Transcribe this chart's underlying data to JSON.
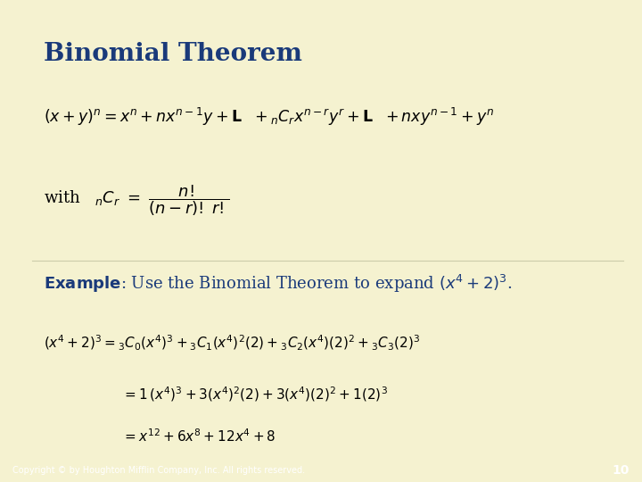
{
  "background_color": "#f5f2d0",
  "border_color": "#1a3a7a",
  "title": "Binomial Theorem",
  "title_color": "#1a3a7a",
  "title_fontsize": 20,
  "text_color": "#1a3a7a",
  "footer_text": "Copyright © by Houghton Mifflin Company, Inc. All rights reserved.",
  "footer_page": "10",
  "line1": "$(x + y)^n = x^n + nx^{n-1}y + \\mathbf{L}\\ \\ +_{n}C_{r}x^{n-r}y^r + \\mathbf{L}\\ \\ + nxy^{n-1} + y^n$",
  "line2": "with   $_{n}C_{r}\\ =\\ \\dfrac{n!}{(n-r)!\\;r!}$",
  "example_line": "$\\mathbf{Example}$: Use the Binomial Theorem to expand $(x^4 + 2)^3$.",
  "eq1": "$(x^4 + 2)^3 = {}_{3}C_0(x^4)^3 + {}_{3}C_1(x^4)^2(2) + {}_{3}C_2(x^4)(2)^2 + {}_{3}C_3(2)^3$",
  "eq2": "$= 1\\,(x^4)^3 + 3(x^4)^2(2) + 3(x^4)(2)^2 + 1(2)^3$",
  "eq3": "$= x^{12} + 6x^8 + 12x^4 + 8$"
}
